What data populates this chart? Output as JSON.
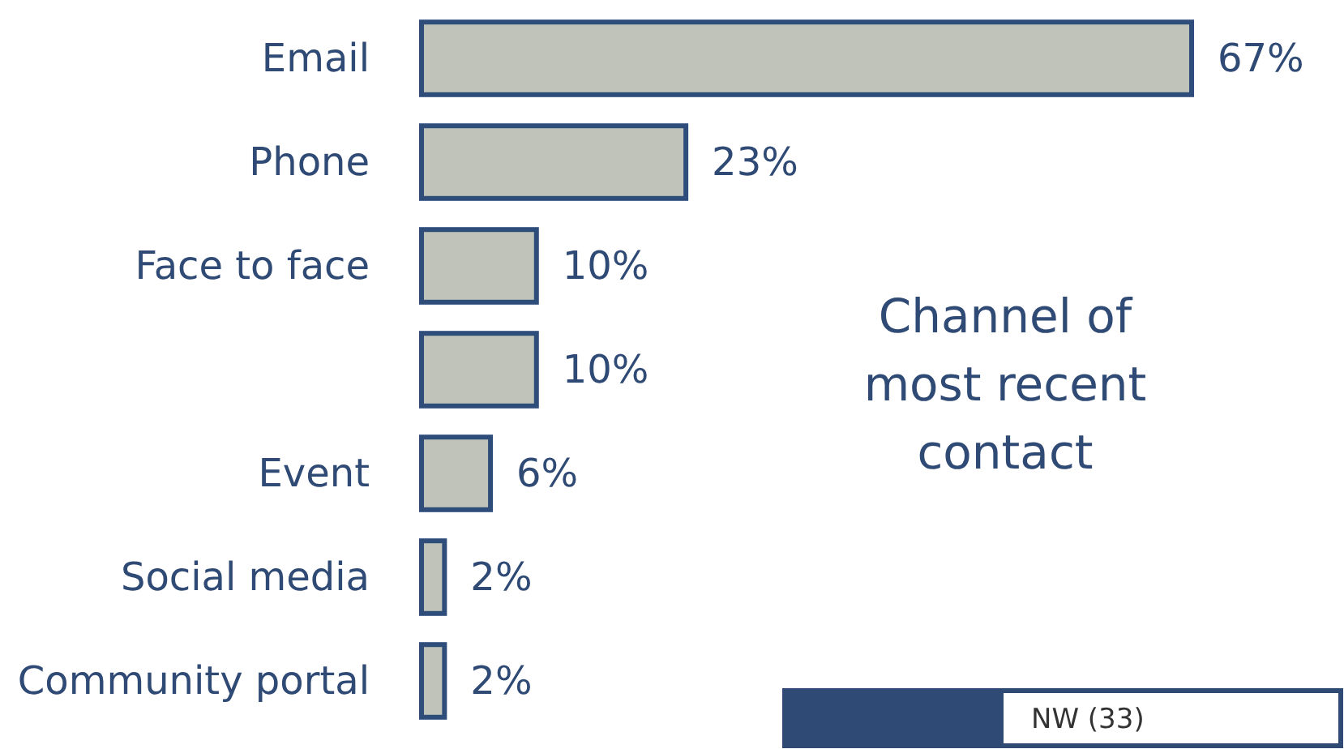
{
  "chart_data": {
    "type": "bar",
    "orientation": "horizontal",
    "title": "Channel of most recent contact",
    "categories": [
      "Email",
      "Phone",
      "Face to face",
      null,
      "Event",
      "Social media",
      "Community portal"
    ],
    "values": [
      67,
      23,
      10,
      10,
      6,
      2,
      2
    ],
    "value_labels": [
      "67%",
      "23%",
      "10%",
      "10%",
      "6%",
      "2%",
      "2%"
    ],
    "color": "#c0c3b9",
    "annotations": [
      "NW (33)"
    ]
  }
}
